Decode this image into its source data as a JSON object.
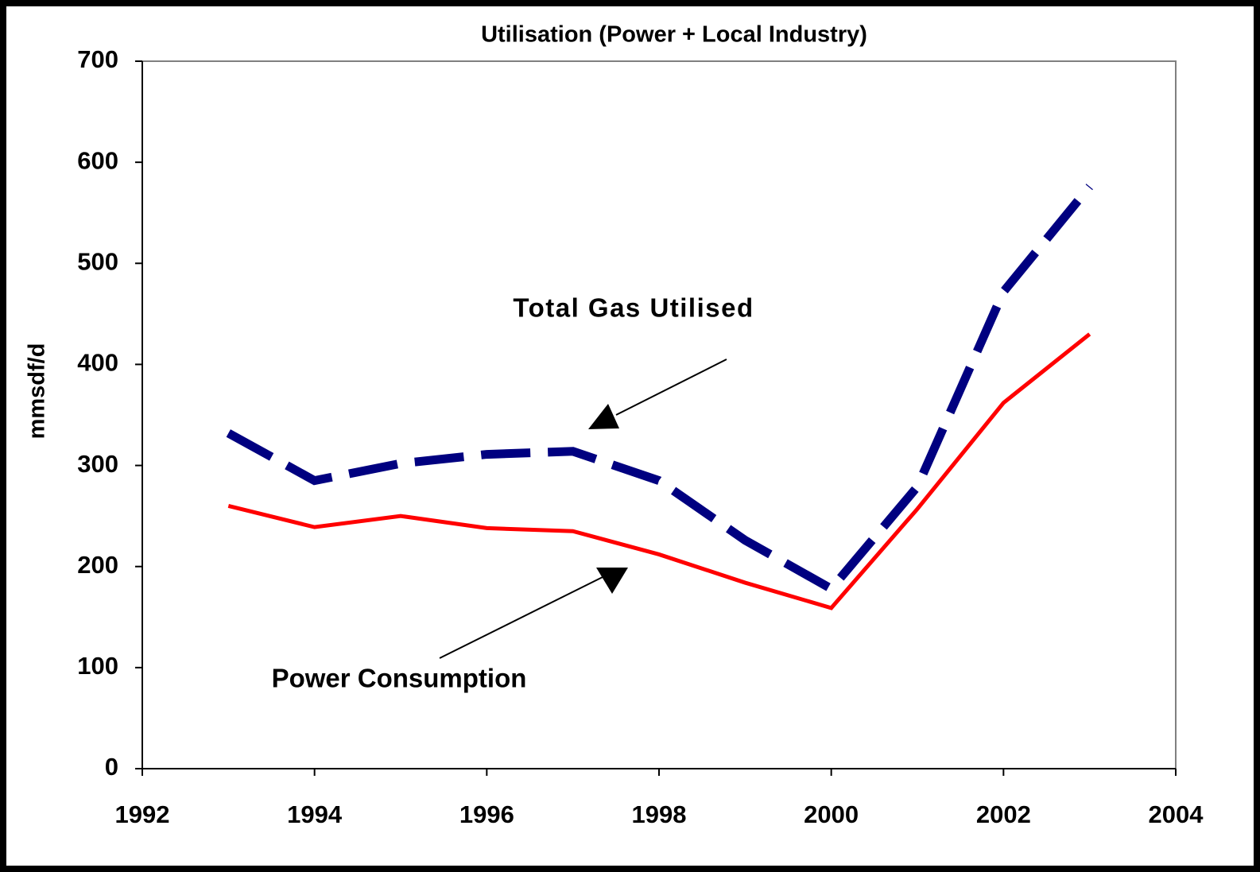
{
  "chart_data": {
    "type": "line",
    "title": "Utilisation (Power + Local Industry)",
    "y_label": "mmsdf/d",
    "x": [
      1993,
      1994,
      1995,
      1996,
      1997,
      1998,
      1999,
      2000,
      2001,
      2002,
      2003
    ],
    "series": [
      {
        "name": "Total Gas Utilised",
        "color": "#000080",
        "style": "dashed",
        "values": [
          332,
          285,
          302,
          311,
          314,
          285,
          226,
          178,
          279,
          472,
          576
        ]
      },
      {
        "name": "Power Consumption",
        "color": "#ff0000",
        "style": "solid",
        "values": [
          260,
          239,
          250,
          238,
          235,
          212,
          184,
          159,
          257,
          362,
          430
        ]
      }
    ],
    "xlim": [
      1992,
      2004
    ],
    "xticks": [
      1992,
      1994,
      1996,
      1998,
      2000,
      2002,
      2004
    ],
    "ylim": [
      0,
      700
    ],
    "yticks": [
      0,
      100,
      200,
      300,
      400,
      500,
      600,
      700
    ],
    "grid": false
  }
}
